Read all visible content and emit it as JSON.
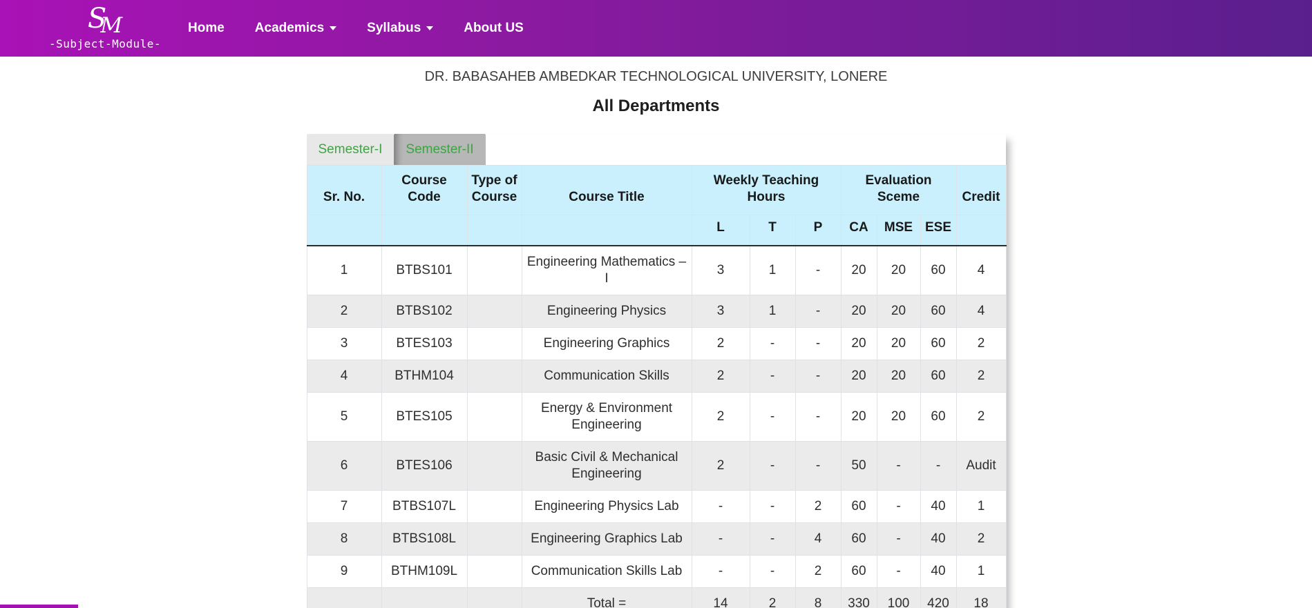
{
  "brand": {
    "monogram_s": "S",
    "monogram_m": "M",
    "name": "-Subject-Module-"
  },
  "nav": {
    "items": [
      {
        "label": "Home",
        "dropdown": false
      },
      {
        "label": "Academics",
        "dropdown": true
      },
      {
        "label": "Syllabus",
        "dropdown": true
      },
      {
        "label": "About US",
        "dropdown": false
      }
    ]
  },
  "page": {
    "university_title": "DR. BABASAHEB AMBEDKAR TECHNOLOGICAL UNIVERSITY, LONERE",
    "section_title": "All Departments"
  },
  "tabs": [
    {
      "label": "Semester-I",
      "active": false
    },
    {
      "label": "Semester-II",
      "active": true
    }
  ],
  "table": {
    "column_groups": [
      {
        "label": "Sr. No."
      },
      {
        "label": "Course Code"
      },
      {
        "label": "Type of Course"
      },
      {
        "label": "Course Title"
      },
      {
        "label": "Weekly Teaching Hours",
        "span": 3
      },
      {
        "label": "Evaluation Sceme",
        "span": 3
      },
      {
        "label": "Credit"
      }
    ],
    "sub_headers": [
      "L",
      "T",
      "P",
      "CA",
      "MSE",
      "ESE"
    ],
    "rows": [
      {
        "cells": [
          "1",
          "BTBS101",
          "",
          "Engineering Mathematics – I",
          "3",
          "1",
          "-",
          "20",
          "20",
          "60",
          "4"
        ]
      },
      {
        "cells": [
          "2",
          "BTBS102",
          "",
          "Engineering Physics",
          "3",
          "1",
          "-",
          "20",
          "20",
          "60",
          "4"
        ]
      },
      {
        "cells": [
          "3",
          "BTES103",
          "",
          "Engineering Graphics",
          "2",
          "-",
          "-",
          "20",
          "20",
          "60",
          "2"
        ]
      },
      {
        "cells": [
          "4",
          "BTHM104",
          "",
          "Communication Skills",
          "2",
          "-",
          "-",
          "20",
          "20",
          "60",
          "2"
        ]
      },
      {
        "cells": [
          "5",
          "BTES105",
          "",
          "Energy & Environment Engineering",
          "2",
          "-",
          "-",
          "20",
          "20",
          "60",
          "2"
        ]
      },
      {
        "cells": [
          "6",
          "BTES106",
          "",
          "Basic Civil & Mechanical Engineering",
          "2",
          "-",
          "-",
          "50",
          "-",
          "-",
          "Audit"
        ]
      },
      {
        "cells": [
          "7",
          "BTBS107L",
          "",
          "Engineering Physics Lab",
          "-",
          "-",
          "2",
          "60",
          "-",
          "40",
          "1"
        ]
      },
      {
        "cells": [
          "8",
          "BTBS108L",
          "",
          "Engineering Graphics Lab",
          "-",
          "-",
          "4",
          "60",
          "-",
          "40",
          "2"
        ]
      },
      {
        "cells": [
          "9",
          "BTHM109L",
          "",
          "Communication Skills Lab",
          "-",
          "-",
          "2",
          "60",
          "-",
          "40",
          "1"
        ]
      }
    ],
    "total_row": {
      "cells": [
        "",
        "",
        "",
        "Total =",
        "14",
        "2",
        "8",
        "330",
        "100",
        "420",
        "18"
      ]
    }
  },
  "colors": {
    "navbar_gradient_start": "#a912b6",
    "navbar_gradient_end": "#5a1f8d",
    "tab_text_green": "#3fa344",
    "tab_inactive_bg": "#e8e8e8",
    "tab_active_bg": "#b7b7b7",
    "table_header_bg": "#c9f0fc",
    "stripe_bg": "#ebebeb",
    "cell_border": "#dee2e6",
    "header_divider": "#2b2b2b"
  }
}
